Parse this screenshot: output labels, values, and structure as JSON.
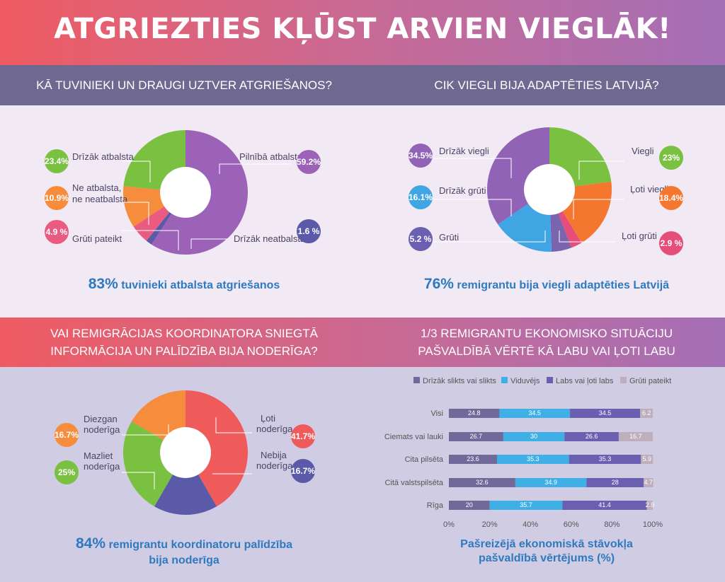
{
  "title": "ATGRIEZTIES KĻŪST ARVIEN VIEGLĀK!",
  "q1": {
    "question": "KĀ TUVINIEKI UN DRAUGI UZTVER   ATGRIEŠANOS?",
    "summary_pct": "83%",
    "summary_text": "tuvinieki atbalsta atgriešanos"
  },
  "q2": {
    "question": "CIK  VIEGLI BIJA ADAPTĒTIES LATVIJĀ?",
    "summary_pct": "76%",
    "summary_text": "remigrantu bija viegli adaptēties Latvijā"
  },
  "q3": {
    "question_line1": "VAI REMIGRĀCIJAS KOORDINATORA SNIEGTĀ",
    "question_line2": "INFORMĀCIJA UN PALĪDZĪBA BIJA NODERĪGA?",
    "summary_pct": "84%",
    "summary_line1": "remigrantu koordinatoru palīdzība",
    "summary_line2": "bija noderīga"
  },
  "q4": {
    "question_line1": "1/3 REMIGRANTU EKONOMISKO SITUĀCIJU",
    "question_line2": "PAŠVALDĪBĀ VĒRTĒ KĀ LABU VAI ĻOTI LABU",
    "caption_line1": "Pašreizējā ekonomiskā stāvokļa",
    "caption_line2": "pašvaldībā vērtējums (%)"
  },
  "colors": {
    "purple": "#9b62b8",
    "green": "#7ac142",
    "orange": "#f58d3c",
    "pink": "#e95b80",
    "navy": "#5a5aa8",
    "blue": "#38a5dd",
    "red": "#ef5b5b",
    "bar1": "#6f6a9a",
    "bar2": "#3fb0e6",
    "bar3": "#6a5fb0",
    "bar4": "#bfaebc"
  },
  "chart_data": [
    {
      "type": "pie",
      "slices": [
        {
          "label": "Pilnībā atbalsta",
          "value": 59.2,
          "display": "59.2%"
        },
        {
          "label": "Drīzāk neatbalsta",
          "value": 1.6,
          "display": "1.6 %"
        },
        {
          "label": "Grūti pateikt",
          "value": 4.9,
          "display": "4.9 %"
        },
        {
          "label": "Ne atbalsta, ne neatbalsta",
          "value": 10.9,
          "display": "10.9%"
        },
        {
          "label": "Drīzāk atbalsta",
          "value": 23.4,
          "display": "23.4%"
        }
      ]
    },
    {
      "type": "pie",
      "slices": [
        {
          "label": "Viegli",
          "value": 23,
          "display": "23%"
        },
        {
          "label": "Ļoti viegli",
          "value": 18.4,
          "display": "18.4%"
        },
        {
          "label": "Ļoti grūti",
          "value": 2.9,
          "display": "2.9 %"
        },
        {
          "label": "Grūti",
          "value": 5.2,
          "display": "5.2 %"
        },
        {
          "label": "Drīzāk grūti",
          "value": 16.1,
          "display": "16.1%"
        },
        {
          "label": "Drīzāk viegli",
          "value": 34.5,
          "display": "34.5%"
        }
      ]
    },
    {
      "type": "pie",
      "slices": [
        {
          "label": "Ļoti noderīga",
          "value": 41.7,
          "display": "41.7%"
        },
        {
          "label": "Nebija noderīga",
          "value": 16.7,
          "display": "16.7%"
        },
        {
          "label": "Mazliet noderīga",
          "value": 25,
          "display": "25%"
        },
        {
          "label": "Diezgan noderīga",
          "value": 16.7,
          "display": "16.7%"
        }
      ]
    },
    {
      "type": "bar",
      "stacked": true,
      "orientation": "horizontal",
      "categories": [
        "Visi",
        "Ciemats vai lauki",
        "Cita pilsēta",
        "Citā valstspilsēta",
        "Rīga"
      ],
      "series": [
        {
          "name": "Drīzāk slikts vai slikts",
          "values": [
            24.8,
            26.7,
            23.6,
            32.6,
            20
          ]
        },
        {
          "name": "Viduvējs",
          "values": [
            34.5,
            30,
            35.3,
            34.9,
            35.7
          ]
        },
        {
          "name": "Labs vai ļoti labs",
          "values": [
            34.5,
            26.6,
            35.3,
            28,
            41.4
          ]
        },
        {
          "name": "Grūti pateikt",
          "values": [
            6.2,
            16.7,
            5.9,
            4.7,
            2.9
          ]
        }
      ],
      "xticks": [
        "0%",
        "20%",
        "40%",
        "60%",
        "80%",
        "100%"
      ],
      "xlim": [
        0,
        100
      ],
      "legend": "top"
    }
  ]
}
